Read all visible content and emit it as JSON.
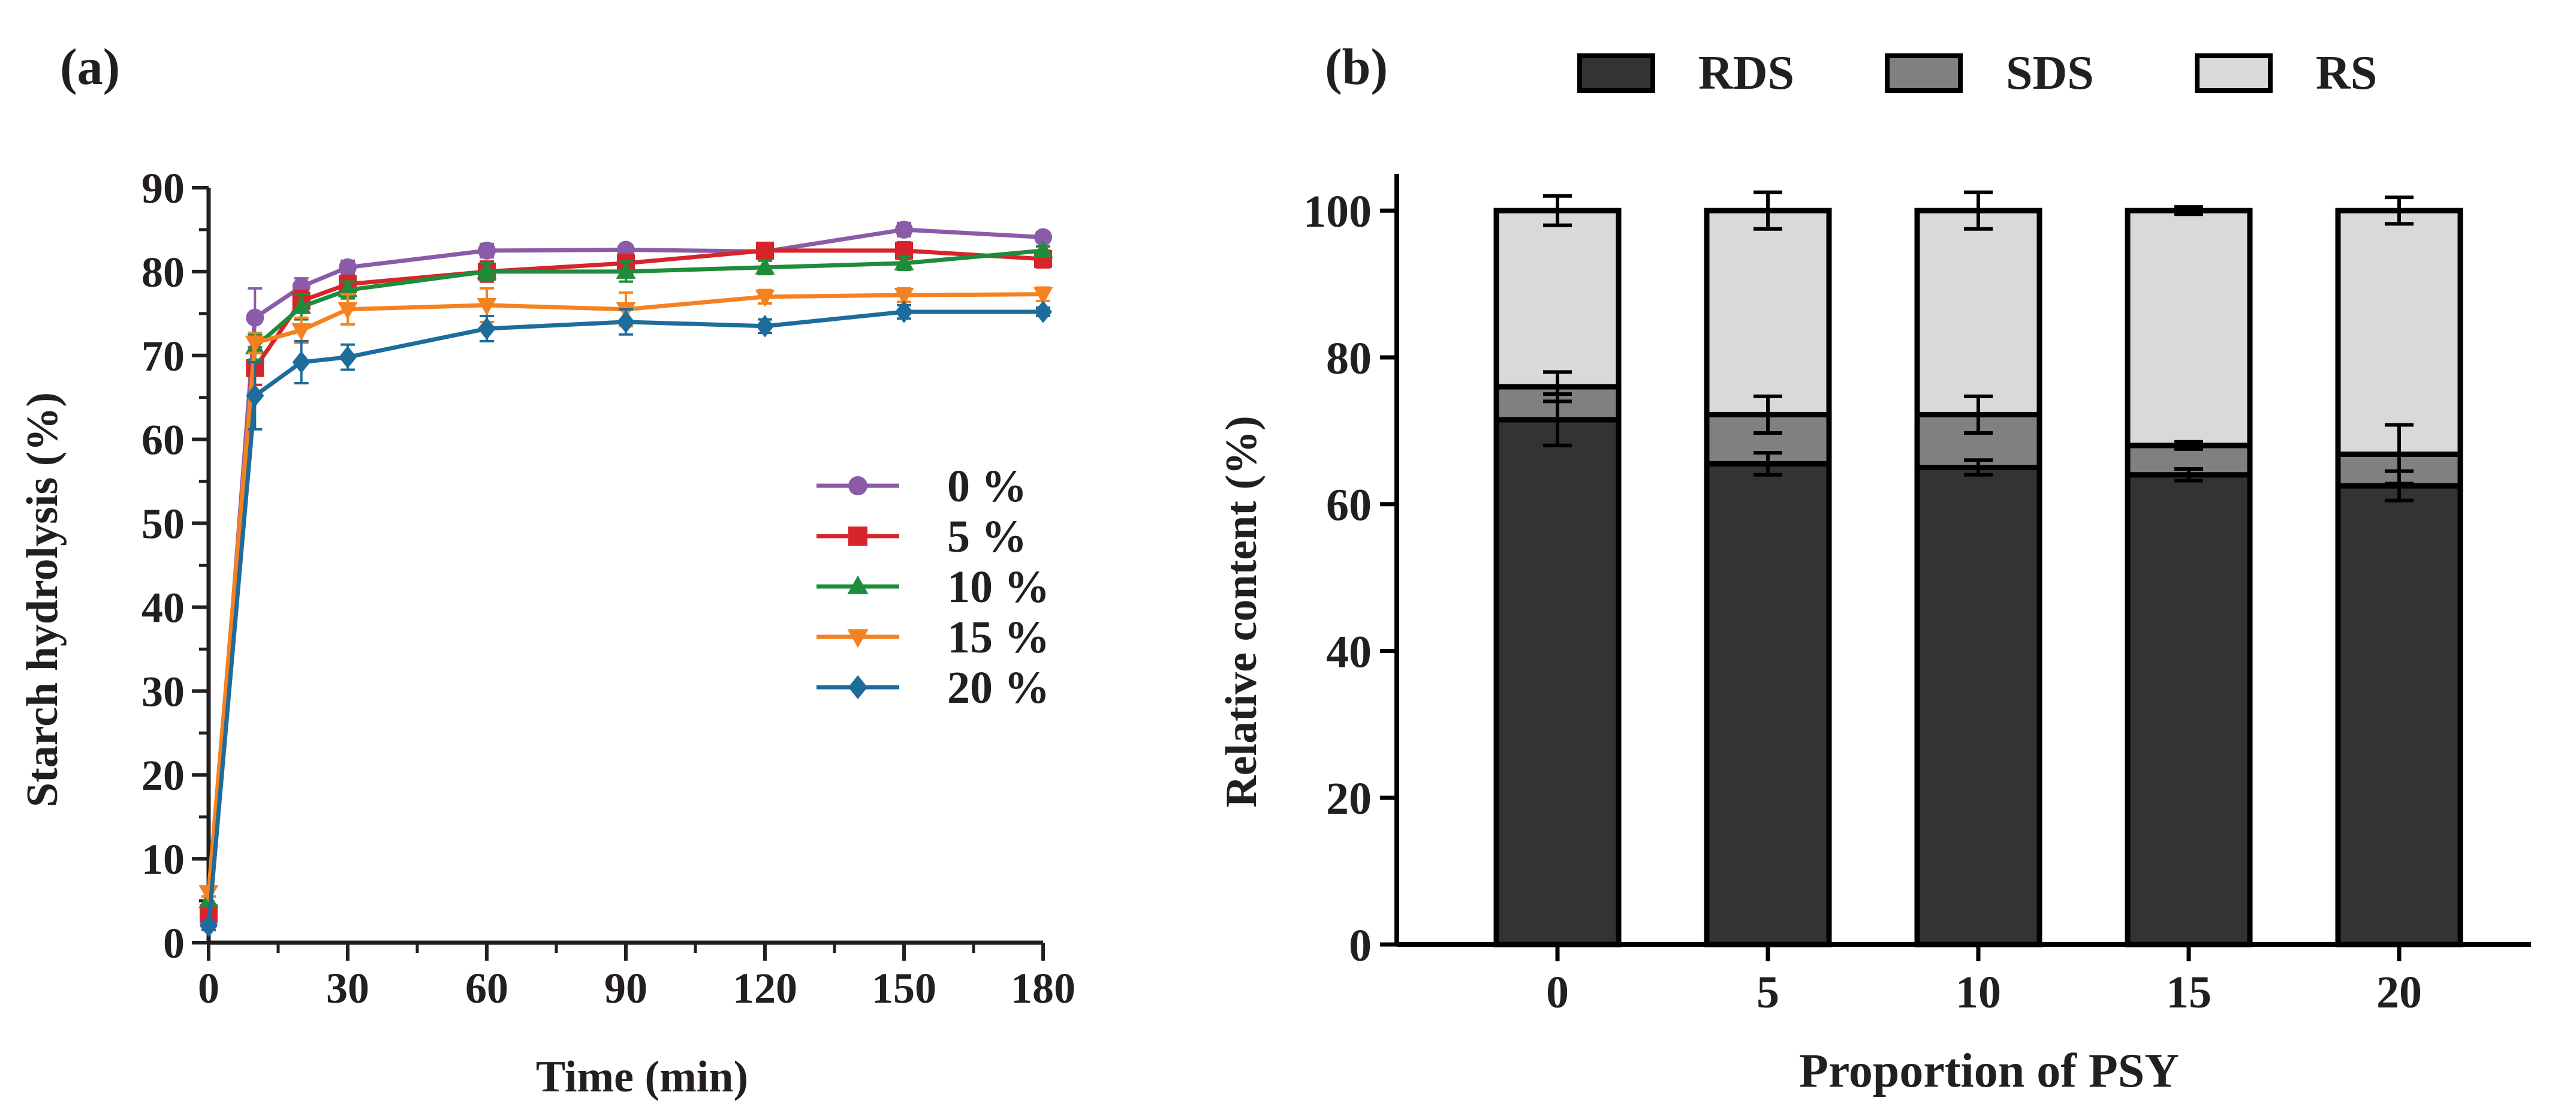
{
  "chart_data": [
    {
      "panel_label": "(a)",
      "type": "line",
      "xlabel": "Time (min)",
      "ylabel": "Starch hydrolysis (%)",
      "xlim": [
        0,
        180
      ],
      "ylim": [
        0,
        90
      ],
      "xticks": [
        0,
        30,
        60,
        90,
        120,
        150,
        180
      ],
      "yticks": [
        0,
        10,
        20,
        30,
        40,
        50,
        60,
        70,
        80,
        90
      ],
      "x": [
        0,
        10,
        20,
        30,
        60,
        90,
        120,
        150,
        180
      ],
      "legend_position": "center-right",
      "series": [
        {
          "name": "0 %",
          "color": "#8a5ca8",
          "marker": "circle",
          "values": [
            2.5,
            74.5,
            78.2,
            80.5,
            82.5,
            82.6,
            82.4,
            85.0,
            84.1
          ],
          "errors": [
            0.5,
            3.5,
            1.0,
            0.8,
            0.8,
            0.5,
            0.5,
            0.8,
            0.6
          ]
        },
        {
          "name": "5 %",
          "color": "#d7242a",
          "marker": "square",
          "values": [
            3.5,
            68.5,
            76.5,
            78.5,
            80.0,
            81.0,
            82.5,
            82.5,
            81.5
          ],
          "errors": [
            0.5,
            2.0,
            1.2,
            1.0,
            1.2,
            1.0,
            0.8,
            1.0,
            1.0
          ]
        },
        {
          "name": "10 %",
          "color": "#1e8c3a",
          "marker": "triangle-up",
          "values": [
            5.0,
            71.0,
            75.8,
            77.8,
            80.0,
            80.0,
            80.5,
            81.0,
            82.5
          ],
          "errors": [
            0.5,
            1.5,
            1.5,
            1.0,
            1.0,
            1.2,
            0.8,
            0.8,
            0.5
          ]
        },
        {
          "name": "15 %",
          "color": "#f58220",
          "marker": "triangle-down",
          "values": [
            6.0,
            71.5,
            73.0,
            75.5,
            76.0,
            75.5,
            77.0,
            77.2,
            77.3
          ],
          "errors": [
            0.5,
            1.2,
            1.5,
            1.8,
            2.0,
            2.0,
            0.8,
            0.8,
            0.8
          ]
        },
        {
          "name": "20 %",
          "color": "#1d6c9c",
          "marker": "diamond",
          "values": [
            2.0,
            65.2,
            69.2,
            69.8,
            73.2,
            74.0,
            73.5,
            75.2,
            75.2
          ],
          "errors": [
            0.5,
            4.0,
            2.5,
            1.5,
            1.5,
            1.5,
            0.8,
            0.8,
            0.5
          ]
        }
      ]
    },
    {
      "panel_label": "(b)",
      "type": "bar",
      "stacked": true,
      "xlabel": "Proportion of PSY",
      "ylabel": "Relative content (%)",
      "categories": [
        "0",
        "5",
        "10",
        "15",
        "20"
      ],
      "ylim": [
        0,
        105
      ],
      "yticks": [
        0,
        20,
        40,
        60,
        80,
        100
      ],
      "legend_position": "top",
      "series": [
        {
          "name": "RDS",
          "color": "#333333",
          "values": [
            71.5,
            65.5,
            65.0,
            64.0,
            62.5
          ],
          "errors": [
            3.5,
            1.5,
            1.0,
            0.8,
            2.0
          ]
        },
        {
          "name": "SDS",
          "color": "#808080",
          "values": [
            4.5,
            6.7,
            7.2,
            4.0,
            4.3
          ],
          "errors": [
            2.0,
            2.5,
            2.5,
            0.5,
            4.0
          ]
        },
        {
          "name": "RS",
          "color": "#d9d9d9",
          "values": [
            24.0,
            27.8,
            27.8,
            32.0,
            33.2
          ],
          "errors": [
            2.0,
            2.5,
            2.5,
            0.5,
            1.8
          ]
        }
      ]
    }
  ]
}
